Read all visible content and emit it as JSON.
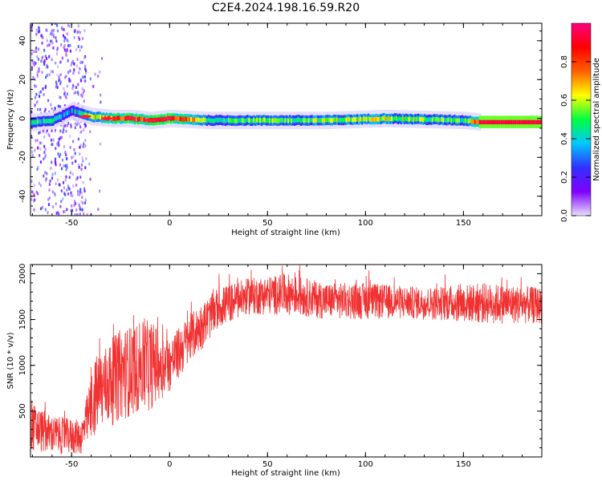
{
  "title": "C2E4.2024.198.16.59.R20",
  "chart_data": [
    {
      "type": "heatmap",
      "title": "C2E4.2024.198.16.59.R20",
      "xlabel": "Height of straight line (km)",
      "ylabel": "Frequency (Hz)",
      "xlim": [
        -71,
        190
      ],
      "ylim": [
        -50,
        49
      ],
      "x_ticks": [
        -50,
        0,
        50,
        100,
        150
      ],
      "y_ticks": [
        -40,
        -20,
        0,
        20,
        40
      ],
      "colorbar": {
        "label": "Normalized spectral amplitude",
        "range": [
          0,
          1
        ],
        "ticks": [
          "0.0",
          "0.2",
          "0.4",
          "0.6",
          "0.8"
        ],
        "colormap": [
          "#e8e0ff",
          "#7f00ff",
          "#3030ff",
          "#00c8ff",
          "#00ff40",
          "#ffff00",
          "#ff6000",
          "#ff0000",
          "#ff0080"
        ]
      },
      "ridge": [
        {
          "x": -70,
          "freq": -2,
          "amp": 0.45
        },
        {
          "x": -60,
          "freq": -1,
          "amp": 0.4
        },
        {
          "x": -50,
          "freq": 4,
          "amp": 0.35
        },
        {
          "x": -40,
          "freq": 1,
          "amp": 0.6
        },
        {
          "x": -30,
          "freq": 0,
          "amp": 0.75
        },
        {
          "x": -20,
          "freq": 0,
          "amp": 0.85
        },
        {
          "x": -10,
          "freq": -1,
          "amp": 0.8
        },
        {
          "x": 0,
          "freq": 0,
          "amp": 0.9
        },
        {
          "x": 20,
          "freq": -1,
          "amp": 0.5
        },
        {
          "x": 50,
          "freq": -1,
          "amp": 0.5
        },
        {
          "x": 80,
          "freq": -1,
          "amp": 0.55
        },
        {
          "x": 110,
          "freq": 0,
          "amp": 0.6
        },
        {
          "x": 150,
          "freq": -1,
          "amp": 0.45
        },
        {
          "x": 160,
          "freq": -2,
          "amp": 0.95
        },
        {
          "x": 190,
          "freq": -2,
          "amp": 0.95
        }
      ]
    },
    {
      "type": "line",
      "xlabel": "Height of straight line (km)",
      "ylabel": "SNR (10 * v/v)",
      "xlim": [
        -71,
        190
      ],
      "ylim": [
        0,
        2100
      ],
      "x_ticks": [
        -50,
        0,
        50,
        100,
        150
      ],
      "y_ticks": [
        500,
        1000,
        1500,
        2000
      ],
      "color": "#f03232",
      "envelope": [
        {
          "x": -71,
          "low": 50,
          "high": 600
        },
        {
          "x": -60,
          "low": 30,
          "high": 450
        },
        {
          "x": -45,
          "low": 20,
          "high": 400
        },
        {
          "x": -38,
          "low": 200,
          "high": 1100
        },
        {
          "x": -25,
          "low": 400,
          "high": 1400
        },
        {
          "x": -10,
          "low": 500,
          "high": 1500
        },
        {
          "x": 0,
          "low": 700,
          "high": 1300
        },
        {
          "x": 10,
          "low": 1000,
          "high": 1550
        },
        {
          "x": 25,
          "low": 1400,
          "high": 1850
        },
        {
          "x": 40,
          "low": 1550,
          "high": 1950
        },
        {
          "x": 60,
          "low": 1550,
          "high": 2000
        },
        {
          "x": 80,
          "low": 1500,
          "high": 1900
        },
        {
          "x": 100,
          "low": 1500,
          "high": 1900
        },
        {
          "x": 130,
          "low": 1500,
          "high": 1850
        },
        {
          "x": 160,
          "low": 1450,
          "high": 1900
        },
        {
          "x": 190,
          "low": 1450,
          "high": 1850
        }
      ]
    }
  ]
}
